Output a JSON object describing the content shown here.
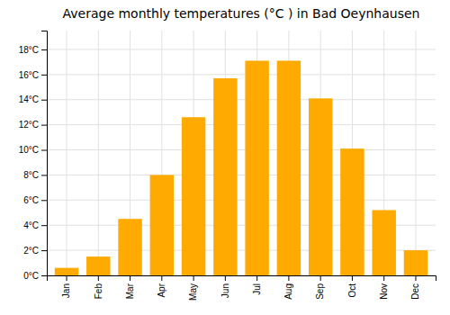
{
  "chart_data": {
    "type": "bar",
    "title": "Average monthly temperatures (°C ) in Bad Oeynhausen",
    "categories": [
      "Jan",
      "Feb",
      "Mar",
      "Apr",
      "May",
      "Jun",
      "Jul",
      "Aug",
      "Sep",
      "Oct",
      "Nov",
      "Dec"
    ],
    "values": [
      0.6,
      1.5,
      4.5,
      8.0,
      12.6,
      15.7,
      17.1,
      17.1,
      14.1,
      10.1,
      5.2,
      2.0
    ],
    "color": "#FFAA00",
    "ylim": [
      0,
      19.5
    ],
    "yticks": [
      {
        "value": 0,
        "label": "0°C"
      },
      {
        "value": 2,
        "label": "2°C"
      },
      {
        "value": 4,
        "label": "4°C"
      },
      {
        "value": 6,
        "label": "6°C"
      },
      {
        "value": 8,
        "label": "8°C"
      },
      {
        "value": 10,
        "label": "10°C"
      },
      {
        "value": 12,
        "label": "12°C"
      },
      {
        "value": 14,
        "label": "14°C"
      },
      {
        "value": 16,
        "label": "16°C"
      },
      {
        "value": 18,
        "label": "18°C"
      }
    ],
    "grid": true
  }
}
